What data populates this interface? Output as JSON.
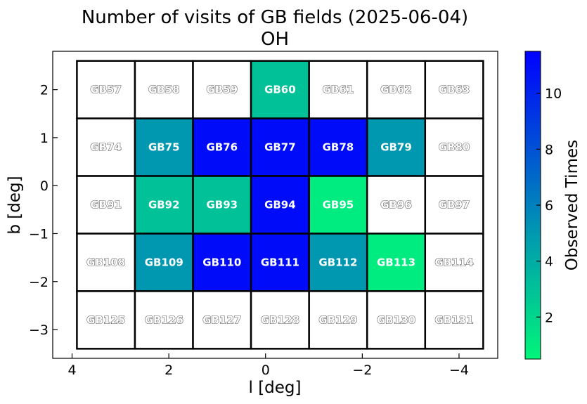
{
  "chart_data": {
    "type": "heatmap",
    "title": "Number of visits of GB fields (2025-06-04)",
    "subtitle": "OH",
    "xlabel": "l [deg]",
    "ylabel": "b [deg]",
    "colorbar_label": "Observed Times",
    "xlim": [
      4.4,
      -4.8
    ],
    "ylim": [
      -3.6,
      2.8
    ],
    "x_ticks": [
      4,
      2,
      0,
      -2,
      -4
    ],
    "x_tick_labels": [
      "4",
      "2",
      "0",
      "−2",
      "−4"
    ],
    "y_ticks": [
      2,
      1,
      0,
      -1,
      -2,
      -3
    ],
    "y_tick_labels": [
      "2",
      "1",
      "0",
      "−1",
      "−2",
      "−3"
    ],
    "colorbar_range": [
      0.5,
      11.5
    ],
    "colorbar_ticks": [
      2,
      4,
      6,
      8,
      10
    ],
    "colorbar_colors": {
      "min": "#00f57a",
      "mid": "#009aaf",
      "max": "#0000ff"
    },
    "grid_edges": {
      "l": [
        3.9,
        2.7,
        1.5,
        0.3,
        -0.9,
        -2.1,
        -3.3,
        -4.5
      ],
      "b": [
        2.6,
        1.4,
        0.2,
        -1.0,
        -2.2,
        -3.4
      ]
    },
    "rows": [
      {
        "fields": [
          "GB57",
          "GB58",
          "GB59",
          "GB60",
          "GB61",
          "GB62",
          "GB63"
        ],
        "values": [
          0,
          0,
          0,
          3,
          0,
          0,
          0
        ]
      },
      {
        "fields": [
          "GB74",
          "GB75",
          "GB76",
          "GB77",
          "GB78",
          "GB79",
          "GB80"
        ],
        "values": [
          0,
          5,
          11,
          11,
          11,
          5,
          0
        ]
      },
      {
        "fields": [
          "GB91",
          "GB92",
          "GB93",
          "GB94",
          "GB95",
          "GB96",
          "GB97"
        ],
        "values": [
          0,
          3,
          3,
          11,
          1,
          0,
          0
        ]
      },
      {
        "fields": [
          "GB108",
          "GB109",
          "GB110",
          "GB111",
          "GB112",
          "GB113",
          "GB114"
        ],
        "values": [
          0,
          5,
          11,
          11,
          5,
          1,
          0
        ]
      },
      {
        "fields": [
          "GB125",
          "GB126",
          "GB127",
          "GB128",
          "GB129",
          "GB130",
          "GB131"
        ],
        "values": [
          0,
          0,
          0,
          0,
          0,
          0,
          0
        ]
      }
    ]
  }
}
